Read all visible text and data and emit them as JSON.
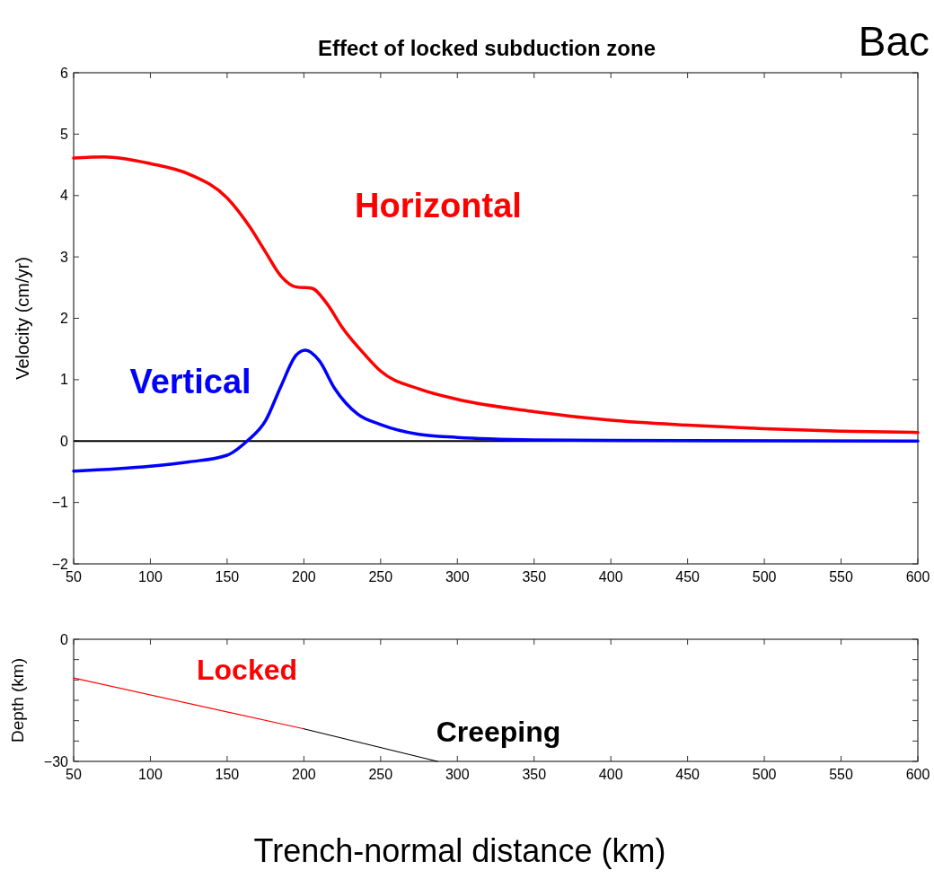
{
  "chart_data": [
    {
      "type": "line",
      "title": "Effect of locked subduction zone",
      "ylabel": "Velocity (cm/yr)",
      "xlim": [
        50,
        600
      ],
      "xticks": [
        50,
        100,
        150,
        200,
        250,
        300,
        350,
        400,
        450,
        500,
        550,
        600
      ],
      "ylim": [
        -2,
        6
      ],
      "yticks": [
        {
          "value": -2,
          "label": "−2"
        },
        {
          "value": -1,
          "label": "−1"
        },
        0,
        1,
        2,
        3,
        4,
        5,
        6
      ],
      "ref_lines": [
        {
          "axis": "y",
          "value": 0,
          "color": "#000000"
        }
      ],
      "annotations": [
        "Bac"
      ],
      "series": [
        {
          "name": "Horizontal",
          "color": "#ff0000",
          "x": [
            50,
            70,
            100,
            125,
            150,
            165,
            175,
            185,
            195,
            205,
            215,
            225,
            240,
            250,
            275,
            300,
            350,
            400,
            450,
            500,
            550,
            600
          ],
          "values": [
            4.61,
            4.63,
            4.52,
            4.35,
            3.96,
            3.48,
            3.08,
            2.69,
            2.51,
            2.49,
            2.24,
            1.85,
            1.4,
            1.14,
            0.85,
            0.68,
            0.48,
            0.34,
            0.26,
            0.2,
            0.16,
            0.14
          ]
        },
        {
          "name": "Vertical",
          "color": "#0000ff",
          "x": [
            50,
            100,
            125,
            150,
            163,
            175,
            185,
            195,
            201,
            210,
            220,
            235,
            250,
            275,
            300,
            350,
            400,
            600
          ],
          "values": [
            -0.49,
            -0.41,
            -0.34,
            -0.23,
            0,
            0.33,
            0.89,
            1.4,
            1.48,
            1.31,
            0.86,
            0.44,
            0.27,
            0.11,
            0.06,
            0.02,
            0.01,
            0
          ]
        }
      ]
    },
    {
      "type": "line",
      "xlabel": "Trench-normal distance (km)",
      "ylabel": "Depth (km)",
      "xlim": [
        50,
        600
      ],
      "xticks": [
        50,
        100,
        150,
        200,
        250,
        300,
        350,
        400,
        450,
        500,
        550,
        600
      ],
      "ylim": [
        -30,
        0
      ],
      "yticks": [
        {
          "value": -30,
          "label": "−30"
        },
        {
          "value": -25,
          "label": null
        },
        {
          "value": -20,
          "label": null
        },
        {
          "value": -15,
          "label": null
        },
        {
          "value": -10,
          "label": null
        },
        {
          "value": -5,
          "label": null
        },
        0
      ],
      "series": [
        {
          "name": "Locked",
          "color": "#ff0000",
          "x": [
            50,
            200
          ],
          "values": [
            -9.5,
            -22
          ]
        },
        {
          "name": "Creeping",
          "color": "#000000",
          "x": [
            200,
            287
          ],
          "values": [
            -22,
            -30
          ]
        }
      ]
    }
  ]
}
